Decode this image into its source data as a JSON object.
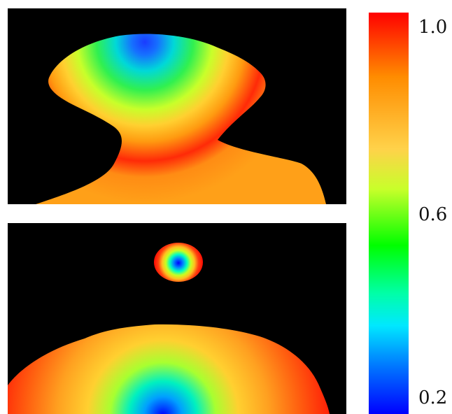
{
  "colorbar": {
    "ticks": [
      "1.0",
      "0.6",
      "0.2"
    ],
    "colors": [
      "#ff0000",
      "#ff8c00",
      "#ffd24a",
      "#00ff00",
      "#00e8ff",
      "#0000ff"
    ]
  },
  "panels": [
    {
      "name": "heatmap-top",
      "background": "#000000"
    },
    {
      "name": "heatmap-bottom",
      "background": "#000000"
    }
  ]
}
